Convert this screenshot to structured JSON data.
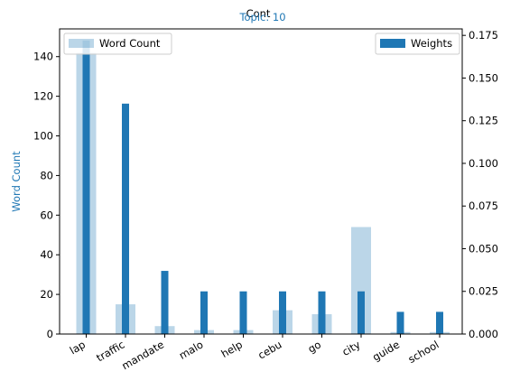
{
  "chart_data": {
    "type": "bar",
    "title": "Topic: 10",
    "overlay_text": "Cont",
    "categories": [
      "lap",
      "traffic",
      "mandate",
      "malo",
      "help",
      "cebu",
      "go",
      "city",
      "guide",
      "school"
    ],
    "series": [
      {
        "name": "Word Count",
        "axis": "left",
        "color": "#1f77b4",
        "opacity": 0.3,
        "values": [
          142,
          15,
          4,
          2,
          2,
          12,
          10,
          54,
          1,
          1
        ]
      },
      {
        "name": "Weights",
        "axis": "right",
        "color": "#1f77b4",
        "opacity": 1,
        "values": [
          0.172,
          0.135,
          0.037,
          0.025,
          0.025,
          0.025,
          0.025,
          0.025,
          0.013,
          0.013
        ]
      }
    ],
    "ylabel": "Word Count",
    "ylabel_color": "#1f77b4",
    "ylim": [
      0,
      154
    ],
    "yticks": [
      0,
      20,
      40,
      60,
      80,
      100,
      120,
      140
    ],
    "y2lim": [
      0,
      0.1788
    ],
    "y2ticks": [
      "0.000",
      "0.025",
      "0.050",
      "0.075",
      "0.100",
      "0.125",
      "0.150",
      "0.175"
    ],
    "legend": [
      {
        "label": "Word Count",
        "placement": "upper-left"
      },
      {
        "label": "Weights",
        "placement": "upper-right"
      }
    ]
  }
}
